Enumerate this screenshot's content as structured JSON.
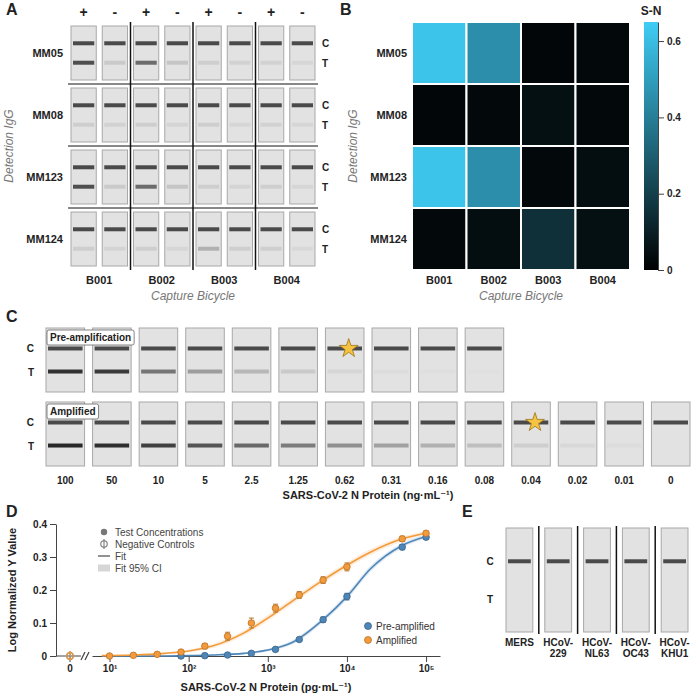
{
  "chart_data": [
    {
      "panel": "A",
      "type": "strip-grid",
      "categories": [
        "B001",
        "B002",
        "B003",
        "B004"
      ],
      "rows": [
        "MM05",
        "MM08",
        "MM123",
        "MM124"
      ],
      "conditions": [
        "+",
        "-"
      ],
      "line_labels": [
        "C",
        "T"
      ],
      "x_label": "Capture Bicycle",
      "y_label": "Detection IgG",
      "test_line": [
        [
          0.75,
          0.12,
          0.6,
          0.15,
          0.1,
          0.08,
          0.08,
          0.06
        ],
        [
          0.1,
          0.08,
          0.1,
          0.07,
          0.1,
          0.06,
          0.08,
          0.06
        ],
        [
          0.75,
          0.12,
          0.6,
          0.15,
          0.1,
          0.07,
          0.1,
          0.06
        ],
        [
          0.1,
          0.07,
          0.1,
          0.06,
          0.25,
          0.1,
          0.1,
          0.05
        ]
      ]
    },
    {
      "panel": "B",
      "type": "heatmap",
      "categories": [
        "B001",
        "B002",
        "B003",
        "B004"
      ],
      "rows": [
        "MM05",
        "MM08",
        "MM123",
        "MM124"
      ],
      "x_label": "Capture Bicycle",
      "y_label": "Detection IgG",
      "cells": [
        [
          0.62,
          0.45,
          0.02,
          0.03
        ],
        [
          0.02,
          0.03,
          0.05,
          0.03
        ],
        [
          0.62,
          0.45,
          0.03,
          0.04
        ],
        [
          0.03,
          0.04,
          0.15,
          0.05
        ]
      ],
      "color": "#3fcdf5",
      "colorbar_title": "S-N",
      "colorbar_range": [
        0,
        0.65
      ],
      "colorbar_ticks": [
        0,
        0.2,
        0.4,
        0.6
      ]
    },
    {
      "panel": "C",
      "type": "strip-series",
      "categories": [
        "100",
        "50",
        "10",
        "5",
        "2.5",
        "1.25",
        "0.62",
        "0.31",
        "0.16",
        "0.08",
        "0.04",
        "0.02",
        "0.01",
        "0"
      ],
      "line_labels": [
        "C",
        "T"
      ],
      "x_label": "SARS-CoV-2 N Protein (ng·mL⁻¹)",
      "marker": "star",
      "rows": [
        {
          "name": "Pre-amplification",
          "lod": 0.62,
          "test_line": [
            0.9,
            0.85,
            0.55,
            0.35,
            0.22,
            0.12,
            0.06,
            0.03,
            0.02,
            0.01,
            null,
            null,
            null,
            null
          ]
        },
        {
          "name": "Amplified",
          "lod": 0.04,
          "test_line": [
            0.95,
            0.92,
            0.82,
            0.72,
            0.62,
            0.52,
            0.42,
            0.33,
            0.25,
            0.18,
            0.1,
            0.05,
            0.03,
            0
          ]
        }
      ]
    },
    {
      "panel": "D",
      "type": "line",
      "log": "x",
      "x_label": "SARS-CoV-2 N Protein (pg·mL⁻¹)",
      "y_label": "Log Normalized Y Value",
      "xlim": [
        6,
        150000
      ],
      "ylim": [
        0,
        0.4
      ],
      "xticks": [
        {
          "value": 10,
          "label": "10¹"
        },
        {
          "value": 100,
          "label": "10²"
        },
        {
          "value": 1000,
          "label": "10³"
        },
        {
          "value": 10000,
          "label": "10⁴"
        },
        {
          "value": 100000,
          "label": "10⁵"
        }
      ],
      "yticks": [
        0,
        0.1,
        0.2,
        0.3,
        0.4
      ],
      "zero_label": "0",
      "legend": "bottom-right",
      "marker_legend": [
        {
          "label": "Test Concentrations",
          "marker": "circle"
        },
        {
          "label": "Negative Controls",
          "marker": "circle-bar"
        },
        {
          "label": "Fit",
          "marker": "line"
        },
        {
          "label": "Fit 95% CI",
          "marker": "band"
        }
      ],
      "series": [
        {
          "name": "Pre-amplified",
          "color": "#4f86b8",
          "x": [
            80,
            160,
            310,
            620,
            1250,
            2500,
            5000,
            10000,
            50000,
            100000
          ],
          "values": [
            0,
            0.001,
            0.003,
            0.008,
            0.02,
            0.05,
            0.11,
            0.18,
            0.33,
            0.36
          ],
          "errors": [
            0.002,
            0.002,
            0.003,
            0.003,
            0.004,
            0.005,
            0.008,
            0.01,
            0.008,
            0.006
          ],
          "negative": 0,
          "fit_x": [
            8,
            20,
            50,
            100,
            200,
            500,
            1000,
            2000,
            5000,
            10000,
            20000,
            50000,
            100000
          ],
          "fit": [
            0,
            0,
            0,
            0.001,
            0.003,
            0.008,
            0.018,
            0.04,
            0.11,
            0.18,
            0.265,
            0.335,
            0.362
          ],
          "ci_low": [
            0,
            0,
            0,
            0,
            0.001,
            0.005,
            0.014,
            0.034,
            0.102,
            0.171,
            0.256,
            0.328,
            0.356
          ],
          "ci_high": [
            0.001,
            0.001,
            0.001,
            0.002,
            0.005,
            0.011,
            0.022,
            0.046,
            0.118,
            0.189,
            0.274,
            0.342,
            0.368
          ]
        },
        {
          "name": "Amplified",
          "color": "#f39a3b",
          "x": [
            10,
            20,
            40,
            80,
            160,
            310,
            620,
            1250,
            2500,
            5000,
            10000,
            50000,
            100000
          ],
          "values": [
            0,
            0.002,
            0.005,
            0.012,
            0.03,
            0.06,
            0.1,
            0.145,
            0.185,
            0.23,
            0.27,
            0.355,
            0.372
          ],
          "errors": [
            0.001,
            0.002,
            0.003,
            0.005,
            0.008,
            0.012,
            0.015,
            0.012,
            0.01,
            0.01,
            0.012,
            0.008,
            0.006
          ],
          "negative": 0,
          "fit_x": [
            8,
            20,
            50,
            100,
            200,
            500,
            1000,
            2000,
            5000,
            10000,
            20000,
            50000,
            100000
          ],
          "fit": [
            0.001,
            0.003,
            0.008,
            0.015,
            0.03,
            0.07,
            0.115,
            0.165,
            0.23,
            0.275,
            0.315,
            0.355,
            0.373
          ],
          "ci_low": [
            0,
            0.001,
            0.005,
            0.011,
            0.024,
            0.062,
            0.106,
            0.156,
            0.221,
            0.266,
            0.306,
            0.348,
            0.367
          ],
          "ci_high": [
            0.002,
            0.005,
            0.011,
            0.019,
            0.036,
            0.078,
            0.124,
            0.174,
            0.239,
            0.284,
            0.324,
            0.362,
            0.379
          ]
        }
      ]
    },
    {
      "panel": "E",
      "type": "strip-series",
      "categories": [
        "MERS",
        "HCoV-229",
        "HCoV-NL63",
        "HCoV-OC43",
        "HCoV-KHU1"
      ],
      "line_labels": [
        "C",
        "T"
      ],
      "test_line": [
        0,
        0,
        0,
        0,
        0
      ]
    }
  ]
}
